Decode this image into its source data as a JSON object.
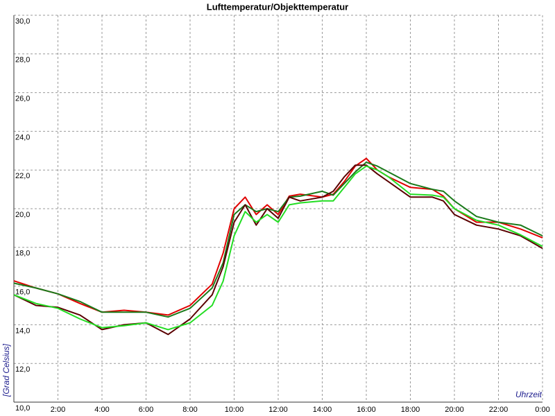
{
  "chart_data": {
    "type": "line",
    "title": "Lufttemperatur/Objekttemperatur",
    "y_label": "[Grad Celsius]",
    "x_label": "Uhrzeit",
    "x": [
      0,
      1,
      2,
      3,
      4,
      5,
      6,
      7,
      8,
      9,
      9.5,
      10,
      10.5,
      11,
      11.5,
      12,
      12.5,
      13,
      14,
      14.5,
      15,
      15.5,
      16,
      16.5,
      17,
      18,
      19,
      19.5,
      20,
      21,
      22,
      23,
      24
    ],
    "series": [
      {
        "color": "#e00000",
        "values": [
          16.27,
          15.9,
          15.6,
          15.1,
          14.65,
          14.75,
          14.65,
          14.5,
          15.0,
          16.1,
          17.7,
          20.0,
          20.6,
          19.7,
          20.2,
          19.7,
          20.65,
          20.75,
          20.6,
          20.75,
          21.4,
          22.2,
          22.6,
          22.0,
          21.65,
          21.1,
          21.0,
          20.65,
          20.0,
          19.3,
          19.3,
          18.95,
          18.5
        ]
      },
      {
        "color": "#1a7a1a",
        "values": [
          16.15,
          15.9,
          15.6,
          15.2,
          14.65,
          14.65,
          14.65,
          14.4,
          14.85,
          15.9,
          17.2,
          19.7,
          20.2,
          19.85,
          20.0,
          19.85,
          20.6,
          20.65,
          20.9,
          20.7,
          21.3,
          21.9,
          22.4,
          22.2,
          21.9,
          21.3,
          21.0,
          20.9,
          20.4,
          19.6,
          19.3,
          19.15,
          18.6
        ]
      },
      {
        "color": "#5a0000",
        "values": [
          15.55,
          15.0,
          14.9,
          14.5,
          13.75,
          14.0,
          14.1,
          13.5,
          14.3,
          15.55,
          17.0,
          19.3,
          20.2,
          19.15,
          20.0,
          19.5,
          20.6,
          20.4,
          20.6,
          20.9,
          21.65,
          22.25,
          22.25,
          21.8,
          21.4,
          20.6,
          20.6,
          20.4,
          19.7,
          19.15,
          18.95,
          18.6,
          17.95
        ]
      },
      {
        "color": "#22dd22",
        "values": [
          15.55,
          15.1,
          14.85,
          14.3,
          13.85,
          13.95,
          14.1,
          13.75,
          14.1,
          15.0,
          16.25,
          18.6,
          19.85,
          19.3,
          19.7,
          19.3,
          20.2,
          20.3,
          20.4,
          20.4,
          21.1,
          21.8,
          22.2,
          22.0,
          21.65,
          20.75,
          20.7,
          20.6,
          20.0,
          19.4,
          19.15,
          18.65,
          18.05
        ]
      }
    ],
    "xlim": [
      0,
      24
    ],
    "xticks": [
      {
        "value": 2,
        "label": "2:00"
      },
      {
        "value": 4,
        "label": "4:00"
      },
      {
        "value": 6,
        "label": "6:00"
      },
      {
        "value": 8,
        "label": "8:00"
      },
      {
        "value": 10,
        "label": "10:00"
      },
      {
        "value": 12,
        "label": "12:00"
      },
      {
        "value": 14,
        "label": "14:00"
      },
      {
        "value": 16,
        "label": "16:00"
      },
      {
        "value": 18,
        "label": "18:00"
      },
      {
        "value": 20,
        "label": "20:00"
      },
      {
        "value": 22,
        "label": "22:00"
      },
      {
        "value": 24,
        "label": "0:00"
      }
    ],
    "ylim": [
      10,
      30
    ],
    "yticks": [
      {
        "value": 10,
        "label": "10,0"
      },
      {
        "value": 12,
        "label": "12,0"
      },
      {
        "value": 14,
        "label": "14,0"
      },
      {
        "value": 16,
        "label": "16,0"
      },
      {
        "value": 18,
        "label": "18,0"
      },
      {
        "value": 20,
        "label": "20,0"
      },
      {
        "value": 22,
        "label": "22,0"
      },
      {
        "value": 24,
        "label": "24,0"
      },
      {
        "value": 26,
        "label": "26,0"
      },
      {
        "value": 28,
        "label": "28,0"
      },
      {
        "value": 30,
        "label": "30,0"
      }
    ],
    "grid": true
  }
}
